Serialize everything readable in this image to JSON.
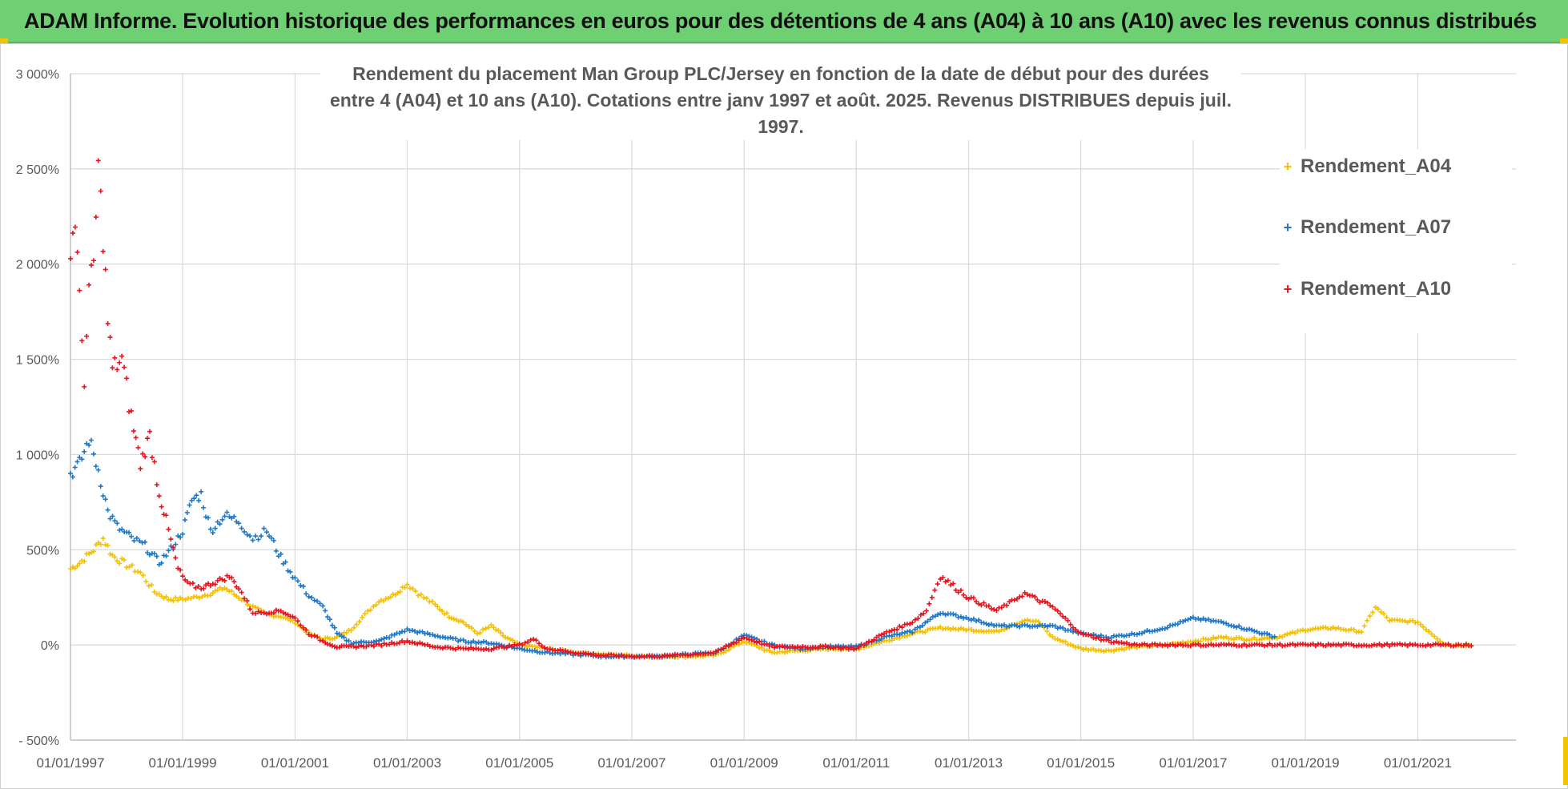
{
  "banner": {
    "title": "ADAM Informe. Evolution historique des performances en euros pour des détentions de 4 ans (A04) à 10 ans (A10) avec les revenus connus distribués"
  },
  "colors": {
    "banner_bg": "#6fcf73",
    "accent_corner": "#f2c500",
    "A04": "#f5c000",
    "A07": "#1f78c8",
    "A10": "#e8141e",
    "grid": "#d9d9d9",
    "axis_text": "#595959"
  },
  "chart_data": {
    "type": "scatter",
    "title_line1": "Rendement du placement Man Group PLC/Jersey en fonction de la date de début pour des durées",
    "title_line2": "entre 4 (A04) et 10 ans (A10).  Cotations entre janv 1997 et août. 2025. Revenus DISTRIBUES depuis juil. 1997.",
    "xlabel": "",
    "ylabel": "",
    "x_range": [
      "1997-01-01",
      "2022-01-01"
    ],
    "ylim": [
      -500,
      3000
    ],
    "y_ticks": [
      -500,
      0,
      500,
      1000,
      1500,
      2000,
      2500,
      3000
    ],
    "y_tick_labels": [
      "- 500%",
      "0%",
      "500%",
      "1 000%",
      "1 500%",
      "2 000%",
      "2 500%",
      "3 000%"
    ],
    "x_tick_labels": [
      "01/01/1997",
      "01/01/1999",
      "01/01/2001",
      "01/01/2003",
      "01/01/2005",
      "01/01/2007",
      "01/01/2009",
      "01/01/2011",
      "01/01/2013",
      "01/01/2015",
      "01/01/2017",
      "01/01/2019",
      "01/01/2021"
    ],
    "grid": true,
    "legend_position": "top-right",
    "marker": "+",
    "series": [
      {
        "name": "Rendement_A04",
        "color": "#f5c000",
        "points": [
          [
            "1997-01-01",
            400
          ],
          [
            "1997-03-01",
            430
          ],
          [
            "1997-06-01",
            500
          ],
          [
            "1997-08-01",
            560
          ],
          [
            "1997-10-01",
            470
          ],
          [
            "1998-01-01",
            420
          ],
          [
            "1998-04-01",
            380
          ],
          [
            "1998-07-01",
            280
          ],
          [
            "1998-10-01",
            240
          ],
          [
            "1999-01-01",
            240
          ],
          [
            "1999-04-01",
            250
          ],
          [
            "1999-07-01",
            270
          ],
          [
            "1999-10-01",
            300
          ],
          [
            "2000-01-01",
            250
          ],
          [
            "2000-04-01",
            200
          ],
          [
            "2000-07-01",
            160
          ],
          [
            "2000-10-01",
            150
          ],
          [
            "2001-01-01",
            120
          ],
          [
            "2001-04-01",
            60
          ],
          [
            "2001-07-01",
            30
          ],
          [
            "2001-10-01",
            40
          ],
          [
            "2002-01-01",
            80
          ],
          [
            "2002-04-01",
            160
          ],
          [
            "2002-07-01",
            230
          ],
          [
            "2002-10-01",
            260
          ],
          [
            "2003-01-01",
            320
          ],
          [
            "2003-04-01",
            260
          ],
          [
            "2003-07-01",
            210
          ],
          [
            "2003-10-01",
            150
          ],
          [
            "2004-01-01",
            120
          ],
          [
            "2004-04-01",
            60
          ],
          [
            "2004-07-01",
            100
          ],
          [
            "2004-10-01",
            40
          ],
          [
            "2005-01-01",
            0
          ],
          [
            "2005-07-01",
            -20
          ],
          [
            "2006-01-01",
            -40
          ],
          [
            "2006-07-01",
            -50
          ],
          [
            "2007-01-01",
            -55
          ],
          [
            "2007-07-01",
            -60
          ],
          [
            "2008-01-01",
            -60
          ],
          [
            "2008-07-01",
            -55
          ],
          [
            "2009-01-01",
            20
          ],
          [
            "2009-07-01",
            -40
          ],
          [
            "2010-01-01",
            -30
          ],
          [
            "2010-07-01",
            -20
          ],
          [
            "2011-01-01",
            -20
          ],
          [
            "2011-07-01",
            20
          ],
          [
            "2012-01-01",
            60
          ],
          [
            "2012-07-01",
            90
          ],
          [
            "2013-01-01",
            80
          ],
          [
            "2013-07-01",
            70
          ],
          [
            "2014-01-01",
            130
          ],
          [
            "2014-04-01",
            120
          ],
          [
            "2014-07-01",
            40
          ],
          [
            "2015-01-01",
            -20
          ],
          [
            "2015-07-01",
            -30
          ],
          [
            "2016-01-01",
            -10
          ],
          [
            "2016-07-01",
            0
          ],
          [
            "2017-01-01",
            20
          ],
          [
            "2017-07-01",
            40
          ],
          [
            "2018-01-01",
            30
          ],
          [
            "2018-07-01",
            40
          ],
          [
            "2019-01-01",
            80
          ],
          [
            "2019-07-01",
            90
          ],
          [
            "2020-01-01",
            70
          ],
          [
            "2020-04-01",
            200
          ],
          [
            "2020-07-01",
            130
          ],
          [
            "2021-01-01",
            120
          ],
          [
            "2021-04-01",
            60
          ],
          [
            "2021-07-01",
            0
          ],
          [
            "2022-01-01",
            0
          ]
        ]
      },
      {
        "name": "Rendement_A07",
        "color": "#1f78c8",
        "points": [
          [
            "1997-01-01",
            900
          ],
          [
            "1997-03-01",
            950
          ],
          [
            "1997-05-01",
            1080
          ],
          [
            "1997-07-01",
            920
          ],
          [
            "1997-09-01",
            700
          ],
          [
            "1997-11-01",
            620
          ],
          [
            "1998-02-01",
            560
          ],
          [
            "1998-05-01",
            520
          ],
          [
            "1998-08-01",
            430
          ],
          [
            "1998-11-01",
            520
          ],
          [
            "1999-01-01",
            600
          ],
          [
            "1999-03-01",
            760
          ],
          [
            "1999-05-01",
            790
          ],
          [
            "1999-07-01",
            600
          ],
          [
            "1999-10-01",
            680
          ],
          [
            "2000-01-01",
            650
          ],
          [
            "2000-04-01",
            560
          ],
          [
            "2000-07-01",
            600
          ],
          [
            "2000-10-01",
            460
          ],
          [
            "2001-01-01",
            350
          ],
          [
            "2001-04-01",
            260
          ],
          [
            "2001-07-01",
            200
          ],
          [
            "2001-10-01",
            60
          ],
          [
            "2002-01-01",
            10
          ],
          [
            "2002-07-01",
            20
          ],
          [
            "2003-01-01",
            80
          ],
          [
            "2003-07-01",
            50
          ],
          [
            "2004-01-01",
            20
          ],
          [
            "2004-07-01",
            10
          ],
          [
            "2005-01-01",
            -20
          ],
          [
            "2005-07-01",
            -40
          ],
          [
            "2006-01-01",
            -50
          ],
          [
            "2006-07-01",
            -60
          ],
          [
            "2007-01-01",
            -60
          ],
          [
            "2007-07-01",
            -60
          ],
          [
            "2008-01-01",
            -50
          ],
          [
            "2008-07-01",
            -40
          ],
          [
            "2009-01-01",
            50
          ],
          [
            "2009-07-01",
            0
          ],
          [
            "2010-01-01",
            -20
          ],
          [
            "2010-07-01",
            -10
          ],
          [
            "2011-01-01",
            -10
          ],
          [
            "2011-07-01",
            40
          ],
          [
            "2012-01-01",
            70
          ],
          [
            "2012-07-01",
            170
          ],
          [
            "2013-01-01",
            140
          ],
          [
            "2013-07-01",
            100
          ],
          [
            "2014-01-01",
            100
          ],
          [
            "2014-07-01",
            100
          ],
          [
            "2015-01-01",
            60
          ],
          [
            "2015-07-01",
            40
          ],
          [
            "2016-01-01",
            60
          ],
          [
            "2016-07-01",
            90
          ],
          [
            "2017-01-01",
            140
          ],
          [
            "2017-07-01",
            120
          ],
          [
            "2018-01-01",
            80
          ],
          [
            "2018-07-01",
            40
          ]
        ]
      },
      {
        "name": "Rendement_A10",
        "color": "#e8141e",
        "points": [
          [
            "1997-01-01",
            2050
          ],
          [
            "1997-02-01",
            2250
          ],
          [
            "1997-03-01",
            1800
          ],
          [
            "1997-04-01",
            1400
          ],
          [
            "1997-05-01",
            1850
          ],
          [
            "1997-06-01",
            2000
          ],
          [
            "1997-07-01",
            2500
          ],
          [
            "1997-08-01",
            2150
          ],
          [
            "1997-09-01",
            1700
          ],
          [
            "1997-10-01",
            1450
          ],
          [
            "1997-12-01",
            1500
          ],
          [
            "1998-02-01",
            1200
          ],
          [
            "1998-04-01",
            950
          ],
          [
            "1998-06-01",
            1100
          ],
          [
            "1998-08-01",
            800
          ],
          [
            "1998-10-01",
            600
          ],
          [
            "1998-12-01",
            400
          ],
          [
            "1999-02-01",
            320
          ],
          [
            "1999-05-01",
            300
          ],
          [
            "1999-08-01",
            330
          ],
          [
            "1999-11-01",
            360
          ],
          [
            "2000-01-01",
            300
          ],
          [
            "2000-04-01",
            170
          ],
          [
            "2000-07-01",
            170
          ],
          [
            "2000-10-01",
            180
          ],
          [
            "2001-01-01",
            140
          ],
          [
            "2001-04-01",
            60
          ],
          [
            "2001-07-01",
            20
          ],
          [
            "2001-10-01",
            -10
          ],
          [
            "2002-01-01",
            -10
          ],
          [
            "2002-07-01",
            0
          ],
          [
            "2003-01-01",
            20
          ],
          [
            "2003-07-01",
            -10
          ],
          [
            "2004-01-01",
            -20
          ],
          [
            "2004-07-01",
            -20
          ],
          [
            "2005-01-01",
            0
          ],
          [
            "2005-04-01",
            30
          ],
          [
            "2005-07-01",
            -20
          ],
          [
            "2006-01-01",
            -40
          ],
          [
            "2006-07-01",
            -55
          ],
          [
            "2007-01-01",
            -60
          ],
          [
            "2007-07-01",
            -60
          ],
          [
            "2008-01-01",
            -50
          ],
          [
            "2008-07-01",
            -40
          ],
          [
            "2009-01-01",
            40
          ],
          [
            "2009-07-01",
            -10
          ],
          [
            "2010-01-01",
            -10
          ],
          [
            "2010-07-01",
            -10
          ],
          [
            "2011-01-01",
            -20
          ],
          [
            "2011-07-01",
            60
          ],
          [
            "2012-01-01",
            120
          ],
          [
            "2012-04-01",
            180
          ],
          [
            "2012-07-01",
            360
          ],
          [
            "2013-01-01",
            250
          ],
          [
            "2013-07-01",
            180
          ],
          [
            "2014-01-01",
            270
          ],
          [
            "2014-07-01",
            200
          ],
          [
            "2015-01-01",
            60
          ],
          [
            "2015-07-01",
            20
          ],
          [
            "2016-01-01",
            0
          ],
          [
            "2017-01-01",
            0
          ],
          [
            "2018-01-01",
            0
          ],
          [
            "2019-01-01",
            0
          ],
          [
            "2020-01-01",
            0
          ],
          [
            "2021-01-01",
            0
          ],
          [
            "2022-01-01",
            0
          ]
        ]
      }
    ]
  }
}
